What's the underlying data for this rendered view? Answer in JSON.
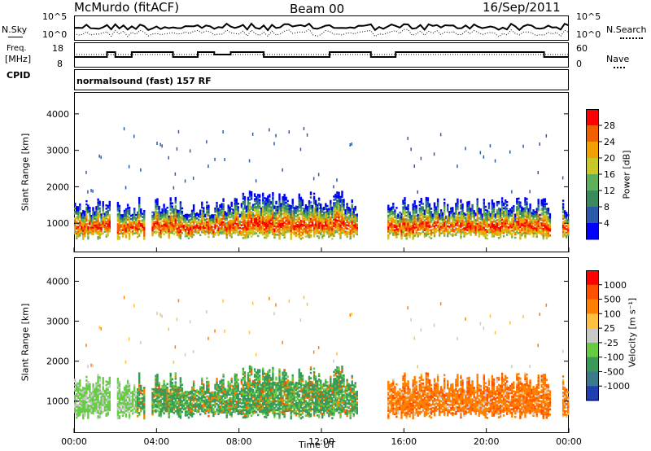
{
  "header": {
    "station": "McMurdo (fitACF)",
    "beam": "Beam 00",
    "date": "16/Sep/2011"
  },
  "topstrip": {
    "nsky_label": "N.Sky",
    "nsky_ticks": [
      "10^5",
      "10^0"
    ],
    "nsearch_label": "N.Search",
    "nsearch_ticks": [
      "10^5",
      "10^0"
    ],
    "freq_label": "Freq.",
    "freq_unit": "[MHz]",
    "freq_ticks": [
      "18",
      "8"
    ],
    "nave_label": "Nave",
    "nave_ticks": [
      "60",
      "0"
    ],
    "cpid_label": "CPID",
    "cpid_text": "normalsound (fast) 157 RF"
  },
  "chart_data": [
    {
      "type": "heatmap",
      "name": "power",
      "ylabel": "Slant Range [km]",
      "yticks": [
        "4000",
        "3000",
        "2000",
        "1000"
      ],
      "ylim": [
        200,
        4600
      ],
      "xlim": [
        0,
        24
      ],
      "colorbar": {
        "label": "Power [dB]",
        "ticks": [
          "28",
          "24",
          "20",
          "16",
          "12",
          "8",
          "4"
        ],
        "colors": [
          "#0000ff",
          "#2a5aa8",
          "#3a8a5a",
          "#5fb05a",
          "#c8c828",
          "#f0a000",
          "#f06000",
          "#ff0000"
        ]
      }
    },
    {
      "type": "heatmap",
      "name": "velocity",
      "ylabel": "Slant Range [km]",
      "yticks": [
        "4000",
        "3000",
        "2000",
        "1000"
      ],
      "ylim": [
        200,
        4600
      ],
      "xlim": [
        0,
        24
      ],
      "xlabel": "Time UT",
      "xticks": [
        "00:00",
        "04:00",
        "08:00",
        "12:00",
        "16:00",
        "20:00",
        "00:00"
      ],
      "colorbar": {
        "label": "Velocity [m s⁻¹]",
        "ticks": [
          "1000",
          "500",
          "100",
          "25",
          "-25",
          "-100",
          "-500",
          "-1000"
        ],
        "colors": [
          "#2040b0",
          "#3a7a8a",
          "#3a9a5a",
          "#66cc44",
          "#c8c8c8",
          "#ffc040",
          "#ff8000",
          "#ff5000",
          "#ff0000"
        ]
      }
    }
  ]
}
